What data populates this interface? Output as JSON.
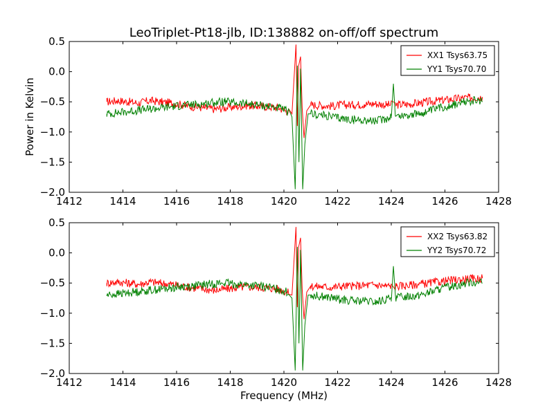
{
  "chart_data": {
    "type": "line",
    "title": "LeoTriplet-Pt18-jlb, ID:138882 on-off/off spectrum",
    "xlabel": "Frequency (MHz)",
    "ylabel": "Power in Kelvin",
    "xlim": [
      1412,
      1428
    ],
    "ylim": [
      -2.0,
      0.5
    ],
    "xticks": [
      "1412",
      "1414",
      "1416",
      "1418",
      "1420",
      "1422",
      "1424",
      "1426",
      "1428"
    ],
    "yticks": [
      "0.5",
      "0.0",
      "−0.5",
      "−1.0",
      "−1.5",
      "−2.0"
    ],
    "panels": [
      {
        "legend": [
          "XX1 Tsys63.75",
          "YY1 Tsys70.70"
        ],
        "series": [
          {
            "name": "XX1 Tsys63.75",
            "color": "#ff0000",
            "x": [
              1413.4,
              1413.8,
              1414.2,
              1414.6,
              1415.0,
              1415.4,
              1415.8,
              1416.2,
              1416.6,
              1417.0,
              1417.4,
              1417.8,
              1418.2,
              1418.6,
              1419.0,
              1419.4,
              1419.8,
              1420.1,
              1420.3,
              1420.45,
              1420.5,
              1420.55,
              1420.62,
              1420.68,
              1420.75,
              1420.85,
              1421.0,
              1421.4,
              1421.8,
              1422.2,
              1422.6,
              1423.0,
              1423.4,
              1423.8,
              1424.2,
              1424.6,
              1425.0,
              1425.4,
              1425.8,
              1426.2,
              1426.6,
              1427.0,
              1427.4
            ],
            "y": [
              -0.5,
              -0.48,
              -0.5,
              -0.52,
              -0.48,
              -0.5,
              -0.52,
              -0.55,
              -0.58,
              -0.6,
              -0.62,
              -0.6,
              -0.58,
              -0.56,
              -0.57,
              -0.58,
              -0.6,
              -0.65,
              -0.7,
              0.45,
              -0.9,
              0.1,
              0.25,
              -0.6,
              -1.1,
              -0.65,
              -0.55,
              -0.56,
              -0.57,
              -0.55,
              -0.55,
              -0.54,
              -0.53,
              -0.55,
              -0.55,
              -0.54,
              -0.52,
              -0.5,
              -0.48,
              -0.46,
              -0.44,
              -0.43,
              -0.42
            ]
          },
          {
            "name": "YY1 Tsys70.70",
            "color": "#008000",
            "x": [
              1413.4,
              1413.8,
              1414.2,
              1414.6,
              1415.0,
              1415.4,
              1415.8,
              1416.2,
              1416.6,
              1417.0,
              1417.4,
              1417.8,
              1418.2,
              1418.6,
              1419.0,
              1419.4,
              1419.8,
              1420.1,
              1420.3,
              1420.42,
              1420.5,
              1420.56,
              1420.62,
              1420.7,
              1420.78,
              1420.9,
              1421.0,
              1421.4,
              1421.8,
              1422.2,
              1422.6,
              1423.0,
              1423.4,
              1423.8,
              1424.0,
              1424.08,
              1424.16,
              1424.6,
              1425.0,
              1425.4,
              1425.8,
              1426.2,
              1426.6,
              1427.0,
              1427.4
            ],
            "y": [
              -0.7,
              -0.68,
              -0.66,
              -0.64,
              -0.62,
              -0.6,
              -0.58,
              -0.56,
              -0.55,
              -0.53,
              -0.51,
              -0.5,
              -0.52,
              -0.53,
              -0.55,
              -0.57,
              -0.6,
              -0.65,
              -0.75,
              -1.95,
              0.1,
              -1.5,
              0.05,
              -1.95,
              -1.2,
              -0.7,
              -0.7,
              -0.72,
              -0.75,
              -0.78,
              -0.8,
              -0.8,
              -0.82,
              -0.78,
              -0.74,
              -0.2,
              -0.74,
              -0.72,
              -0.7,
              -0.66,
              -0.6,
              -0.56,
              -0.52,
              -0.48,
              -0.5
            ]
          }
        ]
      },
      {
        "legend": [
          "XX2 Tsys63.82",
          "YY2 Tsys70.72"
        ],
        "series": [
          {
            "name": "XX2 Tsys63.82",
            "color": "#ff0000",
            "x": [
              1413.4,
              1413.8,
              1414.2,
              1414.6,
              1415.0,
              1415.4,
              1415.8,
              1416.2,
              1416.6,
              1417.0,
              1417.4,
              1417.8,
              1418.2,
              1418.6,
              1419.0,
              1419.4,
              1419.8,
              1420.1,
              1420.3,
              1420.45,
              1420.5,
              1420.55,
              1420.62,
              1420.68,
              1420.75,
              1420.85,
              1421.0,
              1421.4,
              1421.8,
              1422.2,
              1422.6,
              1423.0,
              1423.4,
              1423.8,
              1424.2,
              1424.6,
              1425.0,
              1425.4,
              1425.8,
              1426.2,
              1426.6,
              1427.0,
              1427.4
            ],
            "y": [
              -0.5,
              -0.48,
              -0.5,
              -0.52,
              -0.48,
              -0.5,
              -0.52,
              -0.55,
              -0.58,
              -0.6,
              -0.62,
              -0.6,
              -0.58,
              -0.56,
              -0.57,
              -0.58,
              -0.6,
              -0.65,
              -0.7,
              0.43,
              -0.9,
              0.1,
              0.25,
              -0.6,
              -1.1,
              -0.65,
              -0.55,
              -0.56,
              -0.57,
              -0.55,
              -0.55,
              -0.54,
              -0.53,
              -0.55,
              -0.55,
              -0.54,
              -0.52,
              -0.5,
              -0.48,
              -0.46,
              -0.44,
              -0.43,
              -0.42
            ]
          },
          {
            "name": "YY2 Tsys70.72",
            "color": "#008000",
            "x": [
              1413.4,
              1413.8,
              1414.2,
              1414.6,
              1415.0,
              1415.4,
              1415.8,
              1416.2,
              1416.6,
              1417.0,
              1417.4,
              1417.8,
              1418.2,
              1418.6,
              1419.0,
              1419.4,
              1419.8,
              1420.1,
              1420.3,
              1420.42,
              1420.5,
              1420.56,
              1420.62,
              1420.7,
              1420.78,
              1420.9,
              1421.0,
              1421.4,
              1421.8,
              1422.2,
              1422.6,
              1423.0,
              1423.4,
              1423.8,
              1424.0,
              1424.08,
              1424.16,
              1424.6,
              1425.0,
              1425.4,
              1425.8,
              1426.2,
              1426.6,
              1427.0,
              1427.4
            ],
            "y": [
              -0.7,
              -0.68,
              -0.66,
              -0.64,
              -0.62,
              -0.6,
              -0.58,
              -0.56,
              -0.55,
              -0.53,
              -0.51,
              -0.5,
              -0.52,
              -0.53,
              -0.55,
              -0.57,
              -0.6,
              -0.65,
              -0.75,
              -1.95,
              0.1,
              -1.5,
              0.05,
              -1.95,
              -1.2,
              -0.7,
              -0.7,
              -0.72,
              -0.75,
              -0.78,
              -0.8,
              -0.8,
              -0.82,
              -0.78,
              -0.74,
              -0.22,
              -0.74,
              -0.72,
              -0.7,
              -0.66,
              -0.6,
              -0.56,
              -0.52,
              -0.48,
              -0.5
            ]
          }
        ]
      }
    ]
  }
}
